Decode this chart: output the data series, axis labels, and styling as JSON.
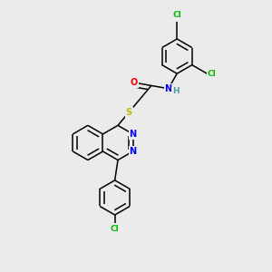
{
  "background_color": "#ebebeb",
  "bond_color": "#000000",
  "atom_colors": {
    "Cl": "#00bb00",
    "N": "#0000ee",
    "O": "#ee0000",
    "S": "#bbbb00",
    "H": "#559999",
    "C": "#000000"
  },
  "font_size_atom": 6.5,
  "bond_width": 1.1,
  "figsize": [
    3.0,
    3.0
  ],
  "dpi": 100
}
